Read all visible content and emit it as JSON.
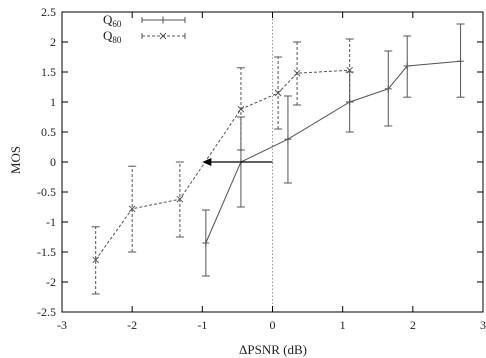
{
  "chart_data": {
    "type": "line",
    "title": "",
    "xlabel": "ΔPSNR (dB)",
    "ylabel": "MOS",
    "xlim": [
      -3,
      3
    ],
    "ylim": [
      -2.5,
      2.5
    ],
    "x_ticks": [
      -3,
      -2,
      -1,
      0,
      1,
      2,
      3
    ],
    "y_ticks": [
      -2.5,
      -2,
      -1.5,
      -1,
      -0.5,
      0,
      0.5,
      1,
      1.5,
      2,
      2.5
    ],
    "x_tick_labels": [
      "-3",
      "-2",
      "-1",
      "0",
      "1",
      "2",
      "3"
    ],
    "y_tick_labels": [
      "-2.5",
      "-2",
      "-1.5",
      "-1",
      "-0.5",
      "0",
      "0.5",
      "1",
      "1.5",
      "2",
      "2.5"
    ],
    "grid": false,
    "legend_position": "top-left",
    "reference_line": {
      "x": 0,
      "style": "dotted"
    },
    "annotation": {
      "type": "arrow",
      "from": [
        0,
        0
      ],
      "to": [
        -1,
        0
      ]
    },
    "series": [
      {
        "name": "Q60",
        "name_main": "Q",
        "name_sub": "60",
        "line_style": "solid",
        "marker": "+",
        "color": "#555555",
        "points": [
          {
            "x": -0.95,
            "y": -1.35,
            "lo": -1.9,
            "hi": -0.8
          },
          {
            "x": -0.45,
            "y": 0.0,
            "lo": -0.75,
            "hi": 0.75
          },
          {
            "x": 0.22,
            "y": 0.38,
            "lo": -0.35,
            "hi": 1.1
          },
          {
            "x": 1.1,
            "y": 1.0,
            "lo": 0.5,
            "hi": 1.5
          },
          {
            "x": 1.65,
            "y": 1.22,
            "lo": 0.6,
            "hi": 1.85
          },
          {
            "x": 1.92,
            "y": 1.6,
            "lo": 1.08,
            "hi": 2.1
          },
          {
            "x": 2.68,
            "y": 1.68,
            "lo": 1.08,
            "hi": 2.3
          }
        ]
      },
      {
        "name": "Q80",
        "name_main": "Q",
        "name_sub": "80",
        "line_style": "dashed",
        "marker": "x",
        "color": "#555555",
        "points": [
          {
            "x": -2.52,
            "y": -1.63,
            "lo": -2.2,
            "hi": -1.08
          },
          {
            "x": -2.0,
            "y": -0.78,
            "lo": -1.5,
            "hi": -0.07
          },
          {
            "x": -1.32,
            "y": -0.62,
            "lo": -1.25,
            "hi": 0.0
          },
          {
            "x": -0.45,
            "y": 0.88,
            "lo": 0.2,
            "hi": 1.57
          },
          {
            "x": 0.08,
            "y": 1.15,
            "lo": 0.55,
            "hi": 1.75
          },
          {
            "x": 0.35,
            "y": 1.48,
            "lo": 0.95,
            "hi": 2.0
          },
          {
            "x": 1.1,
            "y": 1.53,
            "lo": 1.0,
            "hi": 2.05
          }
        ]
      }
    ]
  }
}
